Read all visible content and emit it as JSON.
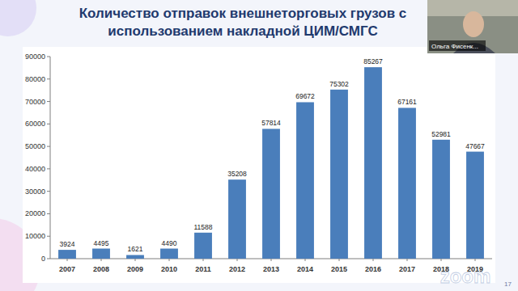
{
  "chart_data": {
    "type": "bar",
    "title": "Количество отправок внешнеторговых грузов с использованием накладной ЦИМ/СМГС",
    "categories": [
      "2007",
      "2008",
      "2009",
      "2010",
      "2011",
      "2012",
      "2013",
      "2014",
      "2015",
      "2016",
      "2017",
      "2018",
      "2019"
    ],
    "values": [
      3924,
      4495,
      1621,
      4490,
      11588,
      35208,
      57814,
      69672,
      75302,
      85267,
      67161,
      52981,
      47667
    ],
    "color": "#4a7ebb",
    "ylim": [
      0,
      90000
    ],
    "yticks": [
      0,
      10000,
      20000,
      30000,
      40000,
      50000,
      60000,
      70000,
      80000,
      90000
    ],
    "grid": false,
    "data_labels": true,
    "annotations": [
      "Ольга Фисенк...",
      "17",
      "zoom"
    ]
  }
}
